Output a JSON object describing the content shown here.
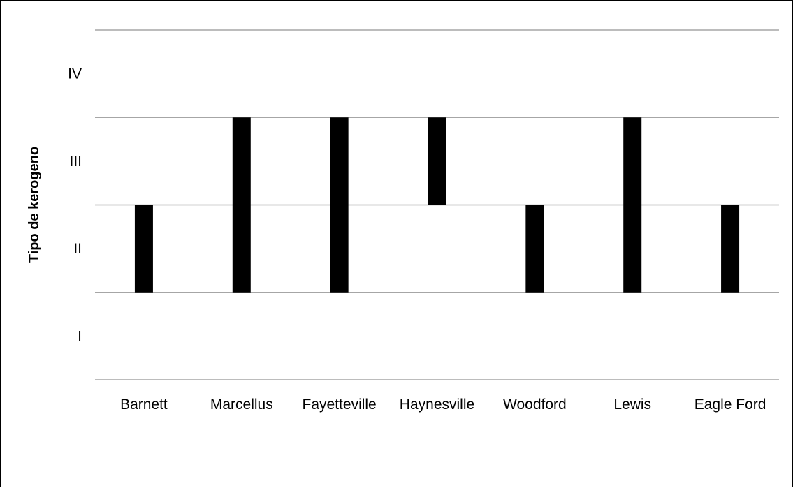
{
  "chart_data": {
    "type": "bar",
    "subtype": "floating-range",
    "title": "",
    "xlabel": "",
    "ylabel": "Tipo de kerogeno",
    "categories": [
      "Barnett",
      "Marcellus",
      "Fayetteville",
      "Haynesville",
      "Woodford",
      "Lewis",
      "Eagle Ford"
    ],
    "y_categories": [
      "I",
      "II",
      "III",
      "IV"
    ],
    "ylim": [
      0,
      4
    ],
    "ranges": [
      [
        1,
        2
      ],
      [
        1,
        3
      ],
      [
        1,
        3
      ],
      [
        2,
        3
      ],
      [
        1,
        2
      ],
      [
        1,
        3
      ],
      [
        1,
        2
      ]
    ],
    "bar_color": "#000000",
    "gridline_color": "#a6a6a6",
    "grid": true,
    "legend": "none"
  }
}
